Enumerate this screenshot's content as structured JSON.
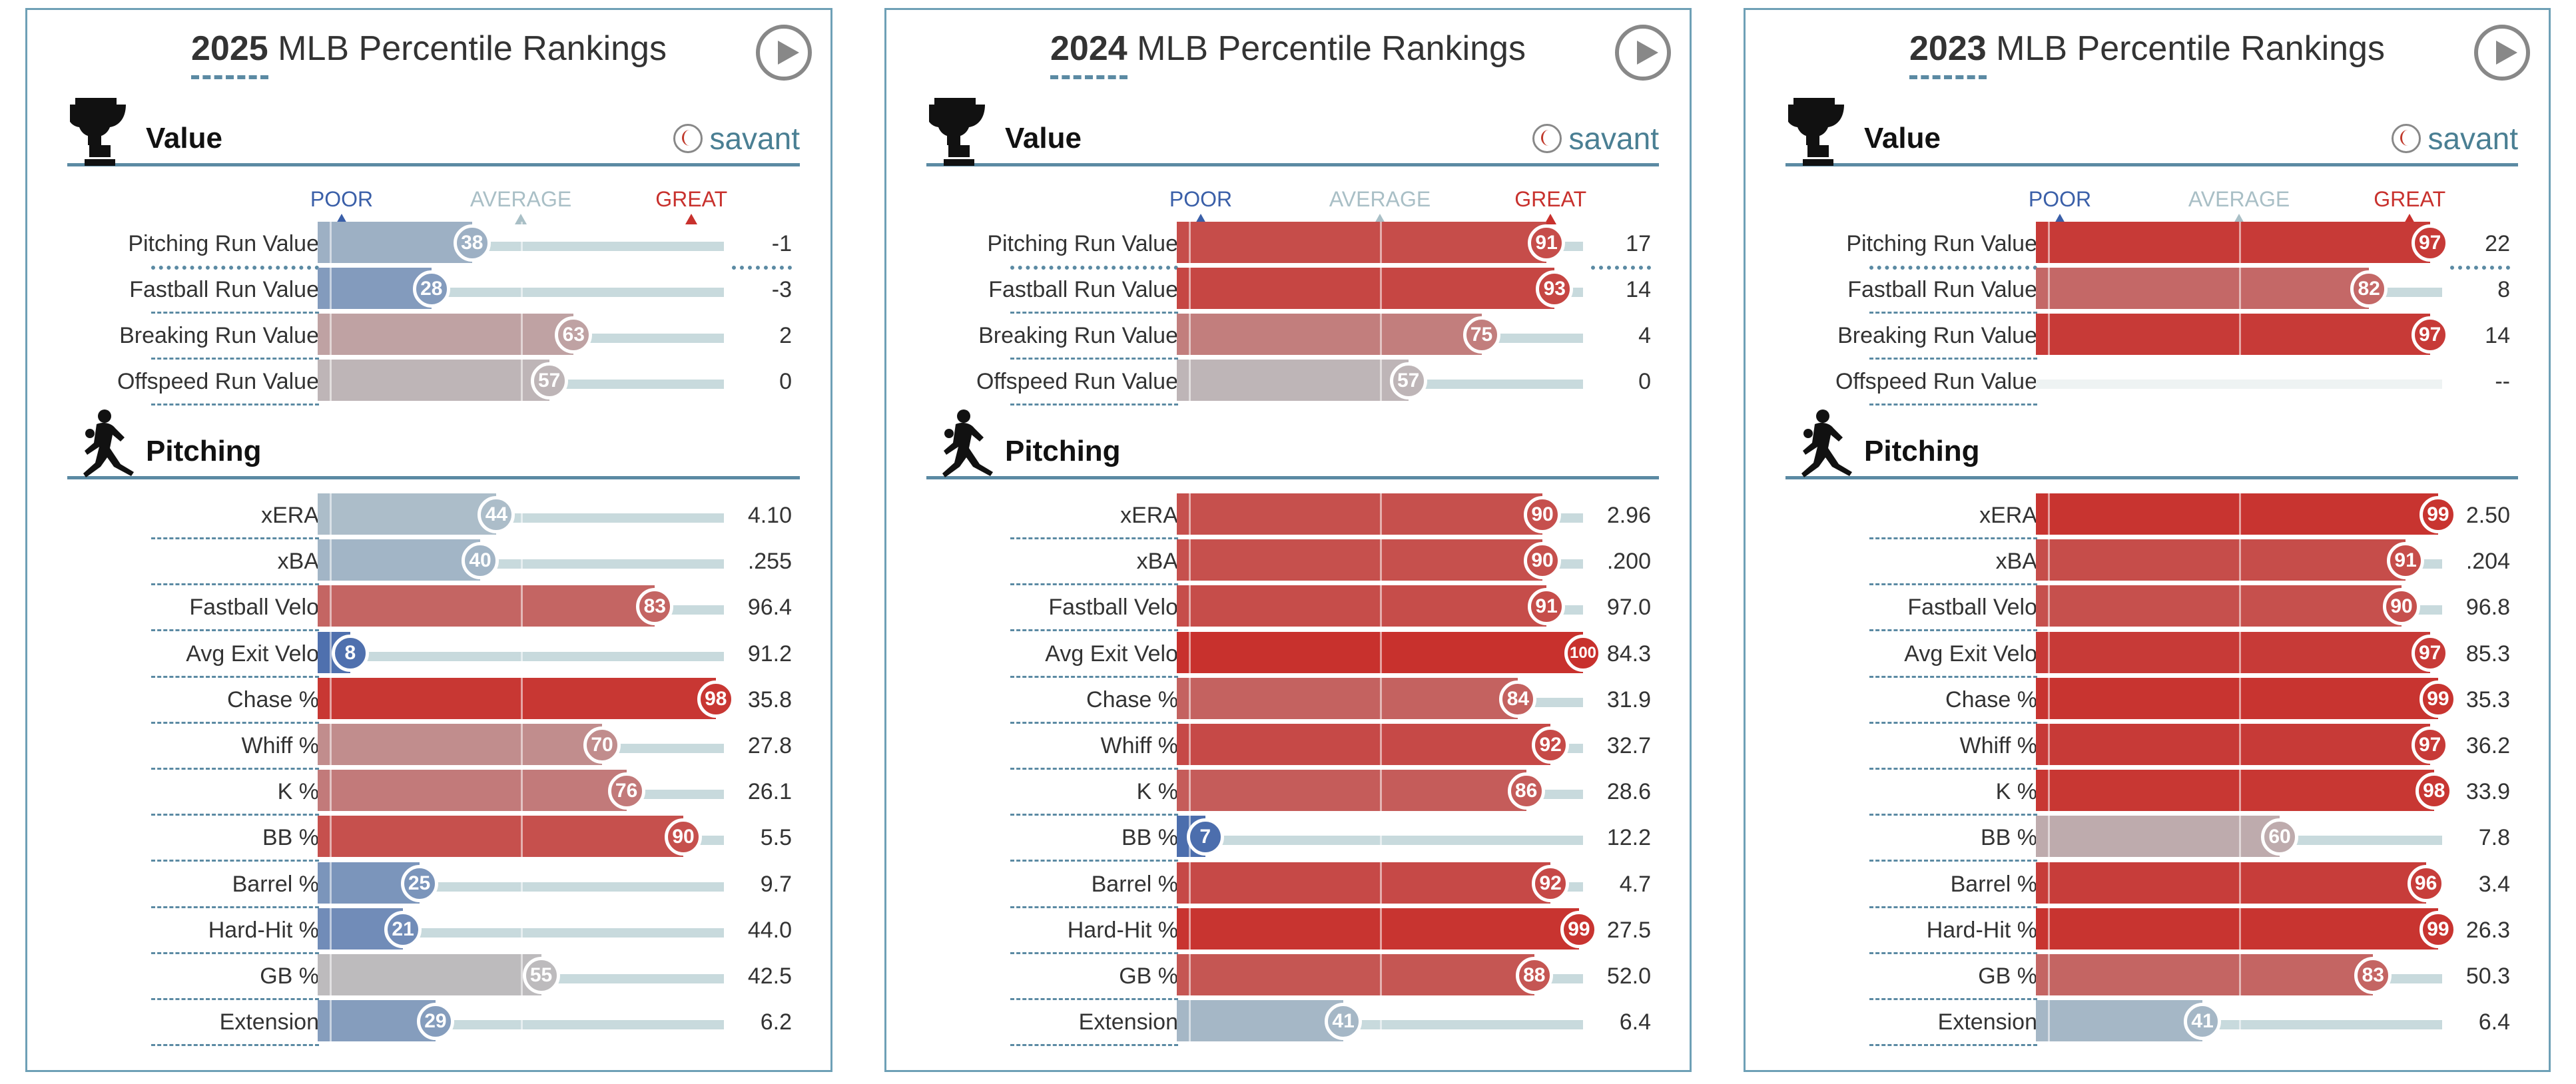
{
  "colors": {
    "frame": "#6ea0b6",
    "poor": "#3a5fa8",
    "average": "#a9bfc6",
    "great": "#c8312d"
  },
  "labels": {
    "poor": "POOR",
    "average": "AVERAGE",
    "great": "GREAT",
    "savant": "savant",
    "value_section": "Value",
    "pitching_section": "Pitching",
    "title_rest": "MLB Percentile Rankings"
  },
  "panels": [
    {
      "year": "2025",
      "value": [
        {
          "name": "Pitching Run Value",
          "pct": 38,
          "val": "-1"
        },
        {
          "name": "Fastball Run Value",
          "pct": 28,
          "val": "-3"
        },
        {
          "name": "Breaking Run Value",
          "pct": 63,
          "val": "2"
        },
        {
          "name": "Offspeed Run Value",
          "pct": 57,
          "val": "0"
        }
      ],
      "pitching": [
        {
          "name": "xERA",
          "pct": 44,
          "val": "4.10"
        },
        {
          "name": "xBA",
          "pct": 40,
          "val": ".255"
        },
        {
          "name": "Fastball Velo",
          "pct": 83,
          "val": "96.4"
        },
        {
          "name": "Avg Exit Velo",
          "pct": 8,
          "val": "91.2"
        },
        {
          "name": "Chase %",
          "pct": 98,
          "val": "35.8"
        },
        {
          "name": "Whiff %",
          "pct": 70,
          "val": "27.8"
        },
        {
          "name": "K %",
          "pct": 76,
          "val": "26.1"
        },
        {
          "name": "BB %",
          "pct": 90,
          "val": "5.5"
        },
        {
          "name": "Barrel %",
          "pct": 25,
          "val": "9.7"
        },
        {
          "name": "Hard-Hit %",
          "pct": 21,
          "val": "44.0"
        },
        {
          "name": "GB %",
          "pct": 55,
          "val": "42.5"
        },
        {
          "name": "Extension",
          "pct": 29,
          "val": "6.2"
        }
      ]
    },
    {
      "year": "2024",
      "value": [
        {
          "name": "Pitching Run Value",
          "pct": 91,
          "val": "17"
        },
        {
          "name": "Fastball Run Value",
          "pct": 93,
          "val": "14"
        },
        {
          "name": "Breaking Run Value",
          "pct": 75,
          "val": "4"
        },
        {
          "name": "Offspeed Run Value",
          "pct": 57,
          "val": "0"
        }
      ],
      "pitching": [
        {
          "name": "xERA",
          "pct": 90,
          "val": "2.96"
        },
        {
          "name": "xBA",
          "pct": 90,
          "val": ".200"
        },
        {
          "name": "Fastball Velo",
          "pct": 91,
          "val": "97.0"
        },
        {
          "name": "Avg Exit Velo",
          "pct": 100,
          "val": "84.3"
        },
        {
          "name": "Chase %",
          "pct": 84,
          "val": "31.9"
        },
        {
          "name": "Whiff %",
          "pct": 92,
          "val": "32.7"
        },
        {
          "name": "K %",
          "pct": 86,
          "val": "28.6"
        },
        {
          "name": "BB %",
          "pct": 7,
          "val": "12.2"
        },
        {
          "name": "Barrel %",
          "pct": 92,
          "val": "4.7"
        },
        {
          "name": "Hard-Hit %",
          "pct": 99,
          "val": "27.5"
        },
        {
          "name": "GB %",
          "pct": 88,
          "val": "52.0"
        },
        {
          "name": "Extension",
          "pct": 41,
          "val": "6.4"
        }
      ]
    },
    {
      "year": "2023",
      "value": [
        {
          "name": "Pitching Run Value",
          "pct": 97,
          "val": "22"
        },
        {
          "name": "Fastball Run Value",
          "pct": 82,
          "val": "8"
        },
        {
          "name": "Breaking Run Value",
          "pct": 97,
          "val": "14"
        },
        {
          "name": "Offspeed Run Value",
          "pct": null,
          "val": "--"
        }
      ],
      "pitching": [
        {
          "name": "xERA",
          "pct": 99,
          "val": "2.50"
        },
        {
          "name": "xBA",
          "pct": 91,
          "val": ".204"
        },
        {
          "name": "Fastball Velo",
          "pct": 90,
          "val": "96.8"
        },
        {
          "name": "Avg Exit Velo",
          "pct": 97,
          "val": "85.3"
        },
        {
          "name": "Chase %",
          "pct": 99,
          "val": "35.3"
        },
        {
          "name": "Whiff %",
          "pct": 97,
          "val": "36.2"
        },
        {
          "name": "K %",
          "pct": 98,
          "val": "33.9"
        },
        {
          "name": "BB %",
          "pct": 60,
          "val": "7.8"
        },
        {
          "name": "Barrel %",
          "pct": 96,
          "val": "3.4"
        },
        {
          "name": "Hard-Hit %",
          "pct": 99,
          "val": "26.3"
        },
        {
          "name": "GB %",
          "pct": 83,
          "val": "50.3"
        },
        {
          "name": "Extension",
          "pct": 41,
          "val": "6.4"
        }
      ]
    }
  ]
}
